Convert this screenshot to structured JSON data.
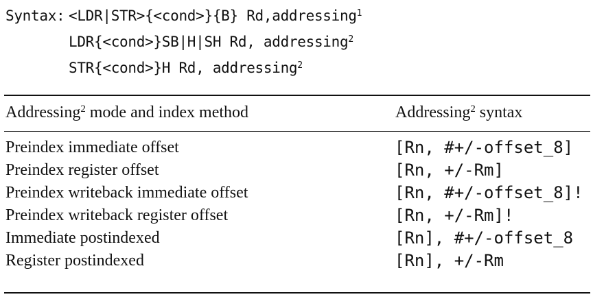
{
  "syntax": {
    "label": "Syntax: ",
    "lines": [
      {
        "text": "<LDR|STR>{<cond>}{B} Rd,addressing",
        "sup": "1"
      },
      {
        "text": "LDR{<cond>}SB|H|SH Rd, addressing",
        "sup": "2"
      },
      {
        "text": "STR{<cond>}H Rd, addressing",
        "sup": "2"
      }
    ]
  },
  "table": {
    "headers": {
      "mode": {
        "pre": "Addressing",
        "sup": "2",
        "post": " mode and index method"
      },
      "syntax": {
        "pre": "Addressing",
        "sup": "2",
        "post": " syntax"
      }
    },
    "rows": [
      {
        "mode": "Preindex immediate offset",
        "syntax": "[Rn, #+/-offset_8]"
      },
      {
        "mode": "Preindex register offset",
        "syntax": "[Rn, +/-Rm]"
      },
      {
        "mode": "Preindex writeback immediate offset",
        "syntax": "[Rn, #+/-offset_8]!"
      },
      {
        "mode": "Preindex writeback register offset",
        "syntax": "[Rn, +/-Rm]!"
      },
      {
        "mode": "Immediate postindexed",
        "syntax": "[Rn], #+/-offset_8"
      },
      {
        "mode": "Register postindexed",
        "syntax": "[Rn], +/-Rm"
      }
    ]
  }
}
